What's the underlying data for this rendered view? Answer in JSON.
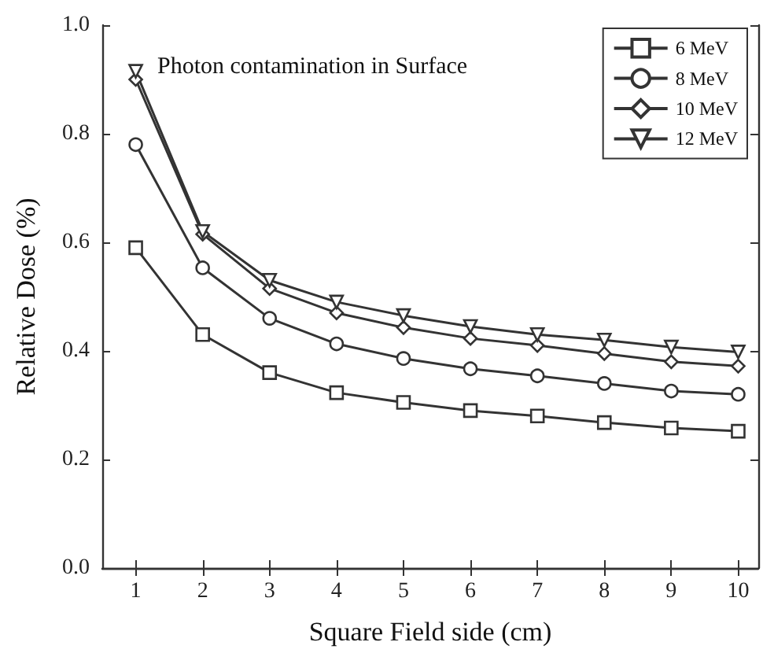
{
  "chart_data": {
    "type": "line",
    "title": "Photon contamination in Surface",
    "xlabel": "Square Field side (cm)",
    "ylabel": "Relative Dose (%)",
    "x": [
      1,
      2,
      3,
      4,
      5,
      6,
      7,
      8,
      9,
      10
    ],
    "series": [
      {
        "name": "6 MeV",
        "color": "#333333",
        "marker": "square",
        "values": [
          0.59,
          0.43,
          0.36,
          0.323,
          0.305,
          0.29,
          0.28,
          0.268,
          0.258,
          0.252
        ]
      },
      {
        "name": "8 MeV",
        "color": "#333333",
        "marker": "circle",
        "values": [
          0.78,
          0.553,
          0.46,
          0.413,
          0.386,
          0.367,
          0.354,
          0.34,
          0.326,
          0.32
        ]
      },
      {
        "name": "10 MeV",
        "color": "#333333",
        "marker": "diamond",
        "values": [
          0.9,
          0.615,
          0.515,
          0.47,
          0.443,
          0.423,
          0.41,
          0.395,
          0.38,
          0.372
        ]
      },
      {
        "name": "12 MeV",
        "color": "#333333",
        "marker": "triangle",
        "values": [
          0.915,
          0.62,
          0.53,
          0.49,
          0.465,
          0.445,
          0.43,
          0.42,
          0.407,
          0.398
        ]
      }
    ],
    "xlim": [
      0.5,
      10.3
    ],
    "xticks": [
      1,
      2,
      3,
      4,
      5,
      6,
      7,
      8,
      9,
      10
    ],
    "ylim": [
      0,
      1
    ],
    "yticks": [
      {
        "value": 0,
        "label": "0.0"
      },
      {
        "value": 0.2,
        "label": "0.2"
      },
      {
        "value": 0.4,
        "label": "0.4"
      },
      {
        "value": 0.6,
        "label": "0.6"
      },
      {
        "value": 0.8,
        "label": "0.8"
      },
      {
        "value": 1,
        "label": "1.0"
      }
    ],
    "legend": "top right",
    "grid": false,
    "line_style": "solid"
  }
}
